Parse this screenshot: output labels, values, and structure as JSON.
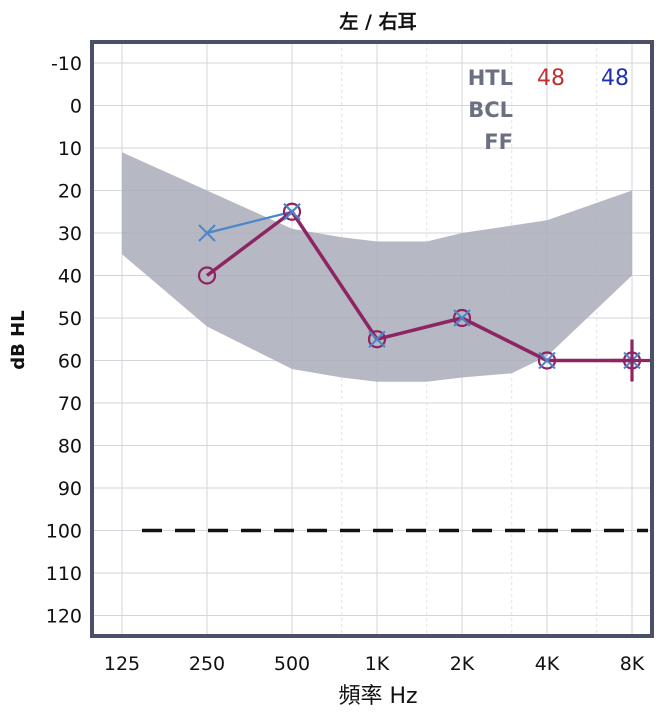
{
  "chart_data": {
    "type": "line",
    "title": "左 / 右耳",
    "xlabel": "頻率 Hz",
    "ylabel": "dB HL",
    "x_categories": [
      "125",
      "250",
      "500",
      "1K",
      "2K",
      "4K",
      "8K"
    ],
    "y_ticks": [
      -10,
      0,
      10,
      20,
      30,
      40,
      50,
      60,
      70,
      80,
      90,
      100,
      110,
      120
    ],
    "ylim": [
      -10,
      120
    ],
    "y_inverted": true,
    "grid": true,
    "reference_line": {
      "y": 100,
      "style": "dashed",
      "color": "#111111"
    },
    "band": {
      "color": "#a9adb8",
      "upper": [
        {
          "x": "125",
          "y": 11
        },
        {
          "x": "250",
          "y": 20
        },
        {
          "x": "500",
          "y": 29
        },
        {
          "x": "750",
          "y": 31
        },
        {
          "x": "1K",
          "y": 32
        },
        {
          "x": "1.5K",
          "y": 32
        },
        {
          "x": "2K",
          "y": 30
        },
        {
          "x": "4K",
          "y": 27
        },
        {
          "x": "8K",
          "y": 20
        }
      ],
      "lower": [
        {
          "x": "125",
          "y": 35
        },
        {
          "x": "250",
          "y": 52
        },
        {
          "x": "500",
          "y": 62
        },
        {
          "x": "750",
          "y": 64
        },
        {
          "x": "1K",
          "y": 65
        },
        {
          "x": "1.5K",
          "y": 65
        },
        {
          "x": "2K",
          "y": 64
        },
        {
          "x": "3K",
          "y": 63
        },
        {
          "x": "4K",
          "y": 59
        },
        {
          "x": "8K",
          "y": 40
        }
      ]
    },
    "series": [
      {
        "color": "#4a86c8",
        "marker": "x",
        "points": [
          {
            "x": "250",
            "y": 30
          },
          {
            "x": "500",
            "y": 25
          }
        ]
      },
      {
        "color": "#8e2461",
        "marker": "o",
        "points": [
          {
            "x": "250",
            "y": 40
          },
          {
            "x": "500",
            "y": 25
          },
          {
            "x": "1K",
            "y": 55
          },
          {
            "x": "2K",
            "y": 50
          },
          {
            "x": "4K",
            "y": 60
          },
          {
            "x": "8K",
            "y": 60
          }
        ]
      }
    ],
    "overlay_markers": [
      {
        "x": "500",
        "y": 25,
        "marker": "x",
        "color": "#4a86c8"
      },
      {
        "x": "1K",
        "y": 55,
        "marker": "x",
        "color": "#4a86c8"
      },
      {
        "x": "2K",
        "y": 50,
        "marker": "x",
        "color": "#4a86c8"
      },
      {
        "x": "4K",
        "y": 60,
        "marker": "x",
        "color": "#4a86c8"
      },
      {
        "x": "8K",
        "y": 60,
        "marker": "x",
        "color": "#4a86c8"
      },
      {
        "x": "8K",
        "y": 60,
        "marker": "plus",
        "color": "#8e2461"
      }
    ],
    "legend": {
      "placement": "top-right",
      "rows": [
        {
          "label": "HTL",
          "values": [
            {
              "text": "48",
              "color": "#c0302c"
            },
            {
              "text": "48",
              "color": "#2030b0"
            }
          ]
        },
        {
          "label": "BCL",
          "values": []
        },
        {
          "label": "FF",
          "values": []
        }
      ]
    },
    "colors": {
      "frame": "#4a5068",
      "grid": "#d4d6dc",
      "minor_grid": "#e0e2e6"
    }
  }
}
